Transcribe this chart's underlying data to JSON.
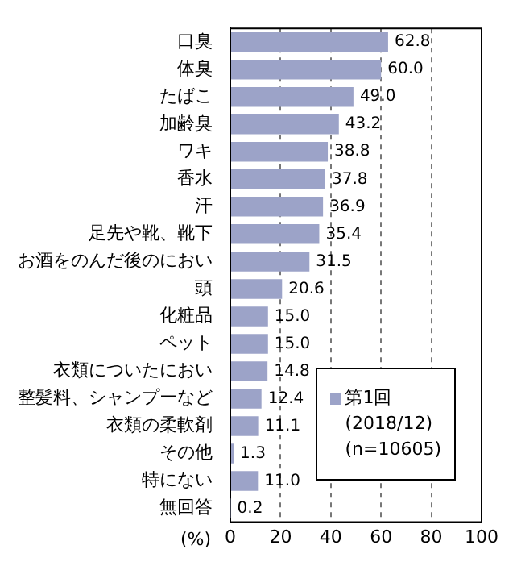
{
  "chart_data": {
    "type": "bar",
    "orientation": "horizontal",
    "categories": [
      "口臭",
      "体臭",
      "たばこ",
      "加齢臭",
      "ワキ",
      "香水",
      "汗",
      "足先や靴、靴下",
      "お酒をのんだ後のにおい",
      "頭",
      "化粧品",
      "ペット",
      "衣類についたにおい",
      "整髪料、シャンプーなど",
      "衣類の柔軟剤",
      "その他",
      "特にない",
      "無回答"
    ],
    "series": [
      {
        "name": "第1回\n(2018/12)\n(n=10605)",
        "color": "#9ca3c8",
        "values": [
          62.8,
          60.0,
          49.0,
          43.2,
          38.8,
          37.8,
          36.9,
          35.4,
          31.5,
          20.6,
          15.0,
          15.0,
          14.8,
          12.4,
          11.1,
          1.3,
          11.0,
          0.2
        ],
        "value_labels": [
          "62.8",
          "60.0",
          "49.0",
          "43.2",
          "38.8",
          "37.8",
          "36.9",
          "35.4",
          "31.5",
          "20.6",
          "15.0",
          "15.0",
          "14.8",
          "12.4",
          "11.1",
          "1.3",
          "11.0",
          "0.2"
        ]
      }
    ],
    "xlabel": "(%)",
    "xlim": [
      0,
      100
    ],
    "xticks": [
      0,
      20,
      40,
      60,
      80,
      100
    ],
    "grid": "x",
    "legend": "bottom right"
  }
}
